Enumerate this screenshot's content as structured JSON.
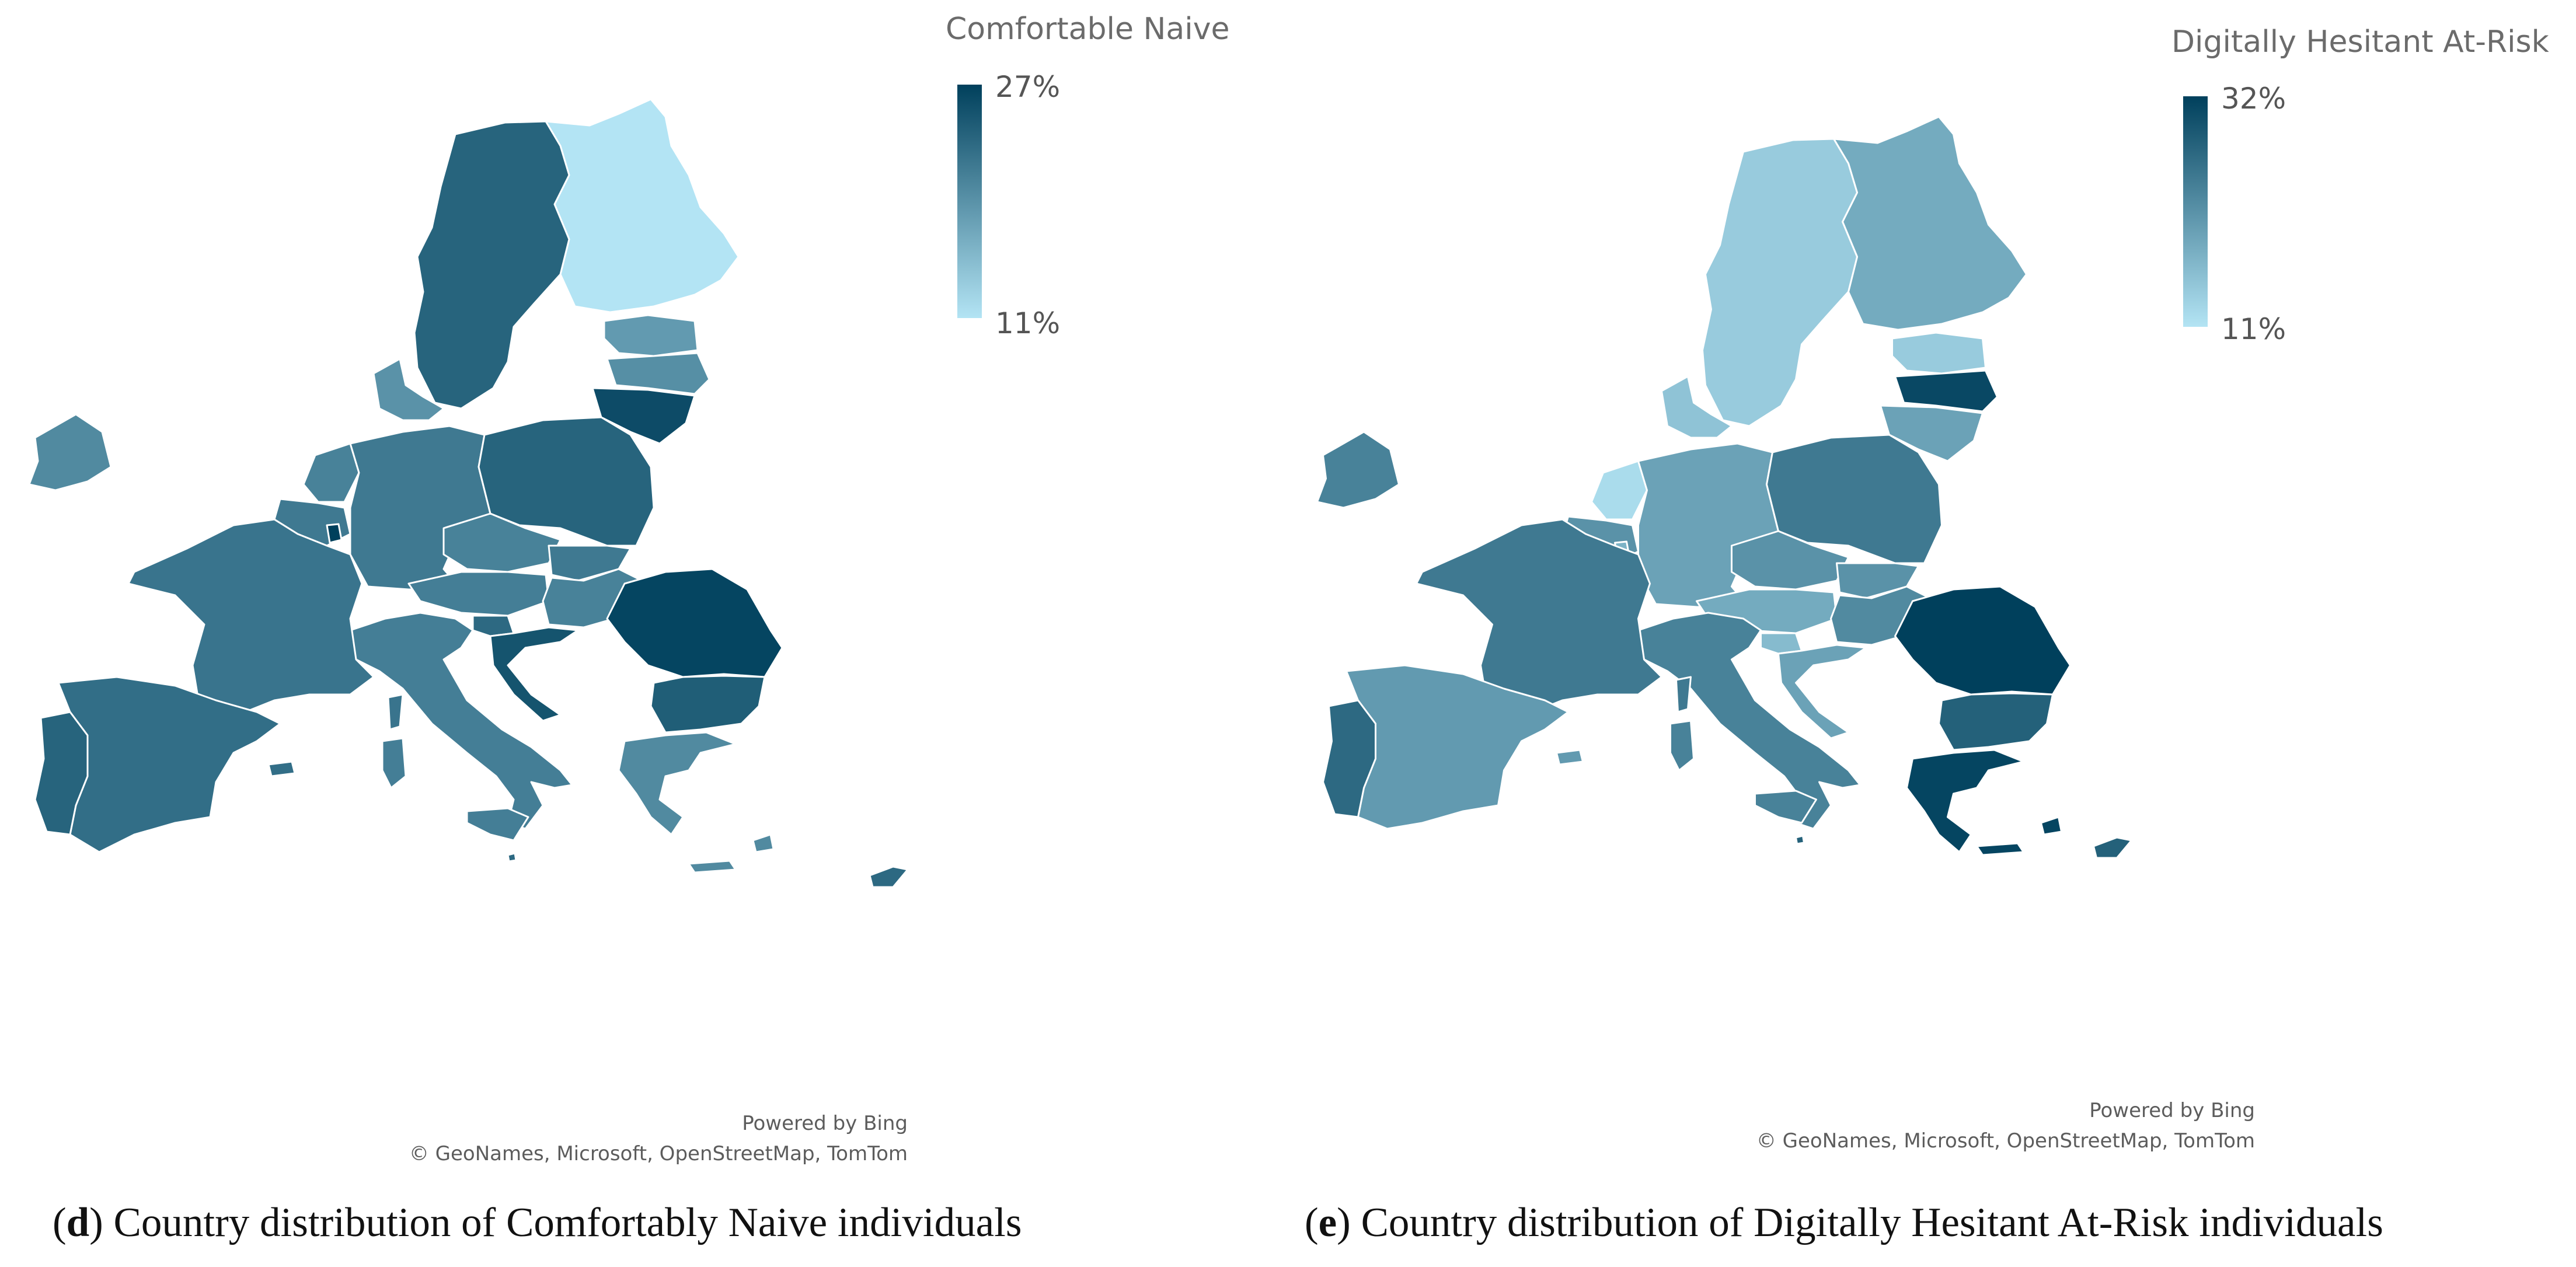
{
  "colors": {
    "scale_low": "#b3e4f4",
    "scale_high": "#00405c",
    "country_border": "#ffffff"
  },
  "panel_d": {
    "legend_title": "Comfortable Naive",
    "legend_max": "27%",
    "legend_min": "11%",
    "credit_line1": "Powered by Bing",
    "credit_line2": "© GeoNames, Microsoft, OpenStreetMap, TomTom",
    "caption_letter": "d",
    "caption_open": "(",
    "caption_text": ") Country distribution of Comfortably Naive individuals",
    "countries": [
      {
        "name": "Finland",
        "level": 0.0
      },
      {
        "name": "Sweden",
        "level": 0.78
      },
      {
        "name": "Estonia",
        "level": 0.45
      },
      {
        "name": "Latvia",
        "level": 0.52
      },
      {
        "name": "Lithuania",
        "level": 0.93
      },
      {
        "name": "Denmark",
        "level": 0.5
      },
      {
        "name": "Ireland",
        "level": 0.55
      },
      {
        "name": "Netherlands",
        "level": 0.6
      },
      {
        "name": "Belgium",
        "level": 0.65
      },
      {
        "name": "Luxembourg",
        "level": 1.0
      },
      {
        "name": "Germany",
        "level": 0.65
      },
      {
        "name": "Poland",
        "level": 0.78
      },
      {
        "name": "Czechia",
        "level": 0.6
      },
      {
        "name": "Slovakia",
        "level": 0.65
      },
      {
        "name": "Austria",
        "level": 0.62
      },
      {
        "name": "Hungary",
        "level": 0.6
      },
      {
        "name": "Slovenia",
        "level": 0.75
      },
      {
        "name": "Croatia",
        "level": 0.88
      },
      {
        "name": "Romania",
        "level": 0.97
      },
      {
        "name": "Bulgaria",
        "level": 0.82
      },
      {
        "name": "Greece",
        "level": 0.55
      },
      {
        "name": "Italy",
        "level": 0.62
      },
      {
        "name": "France",
        "level": 0.68
      },
      {
        "name": "Spain",
        "level": 0.72
      },
      {
        "name": "Portugal",
        "level": 0.78
      },
      {
        "name": "Malta",
        "level": 0.75
      },
      {
        "name": "Cyprus",
        "level": 0.75
      }
    ]
  },
  "panel_e": {
    "legend_title": "Digitally Hesitant At-Risk",
    "legend_max": "32%",
    "legend_min": "11%",
    "credit_line1": "Powered by Bing",
    "credit_line2": "© GeoNames, Microsoft, OpenStreetMap, TomTom",
    "caption_letter": "e",
    "caption_open": "(",
    "caption_text": ") Country distribution of Digitally Hesitant At-Risk individuals",
    "countries": [
      {
        "name": "Finland",
        "level": 0.35
      },
      {
        "name": "Sweden",
        "level": 0.15
      },
      {
        "name": "Estonia",
        "level": 0.15
      },
      {
        "name": "Latvia",
        "level": 0.95
      },
      {
        "name": "Lithuania",
        "level": 0.4
      },
      {
        "name": "Denmark",
        "level": 0.2
      },
      {
        "name": "Ireland",
        "level": 0.6
      },
      {
        "name": "Netherlands",
        "level": 0.05
      },
      {
        "name": "Belgium",
        "level": 0.5
      },
      {
        "name": "Luxembourg",
        "level": 0.3
      },
      {
        "name": "Germany",
        "level": 0.4
      },
      {
        "name": "Poland",
        "level": 0.65
      },
      {
        "name": "Czechia",
        "level": 0.5
      },
      {
        "name": "Slovakia",
        "level": 0.5
      },
      {
        "name": "Austria",
        "level": 0.35
      },
      {
        "name": "Hungary",
        "level": 0.55
      },
      {
        "name": "Slovenia",
        "level": 0.25
      },
      {
        "name": "Croatia",
        "level": 0.4
      },
      {
        "name": "Romania",
        "level": 1.0
      },
      {
        "name": "Bulgaria",
        "level": 0.8
      },
      {
        "name": "Greece",
        "level": 0.97
      },
      {
        "name": "Italy",
        "level": 0.6
      },
      {
        "name": "France",
        "level": 0.65
      },
      {
        "name": "Spain",
        "level": 0.45
      },
      {
        "name": "Portugal",
        "level": 0.75
      },
      {
        "name": "Malta",
        "level": 0.8
      },
      {
        "name": "Cyprus",
        "level": 0.8
      }
    ]
  }
}
